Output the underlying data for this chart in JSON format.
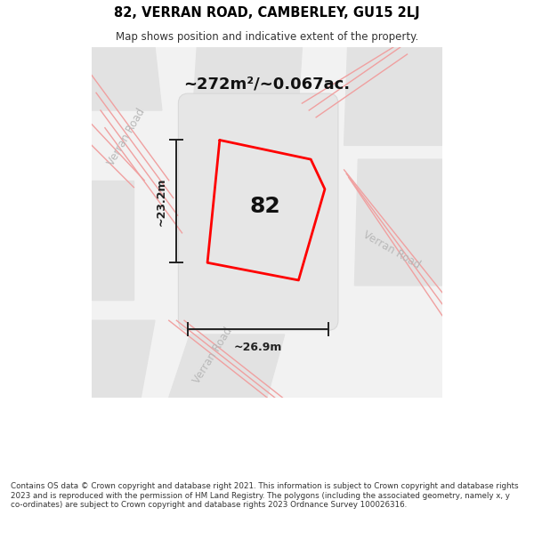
{
  "title": "82, VERRAN ROAD, CAMBERLEY, GU15 2LJ",
  "subtitle": "Map shows position and indicative extent of the property.",
  "area_text": "~272m²/~0.067ac.",
  "property_number": "82",
  "dim_vertical": "~23.2m",
  "dim_horizontal": "~26.9m",
  "road_label": "Verran Road",
  "footer": "Contains OS data © Crown copyright and database right 2021. This information is subject to Crown copyright and database rights 2023 and is reproduced with the permission of HM Land Registry. The polygons (including the associated geometry, namely x, y co-ordinates) are subject to Crown copyright and database rights 2023 Ordnance Survey 100026316.",
  "bg_color": "#ffffff",
  "map_bg": "#f2f2f2",
  "block_color": "#e2e2e2",
  "road_line_color": "#f0a0a0",
  "property_line_color": "#ff0000",
  "dim_line_color": "#222222",
  "title_color": "#000000",
  "road_label_color": "#b8b8b8",
  "subtitle_color": "#333333"
}
